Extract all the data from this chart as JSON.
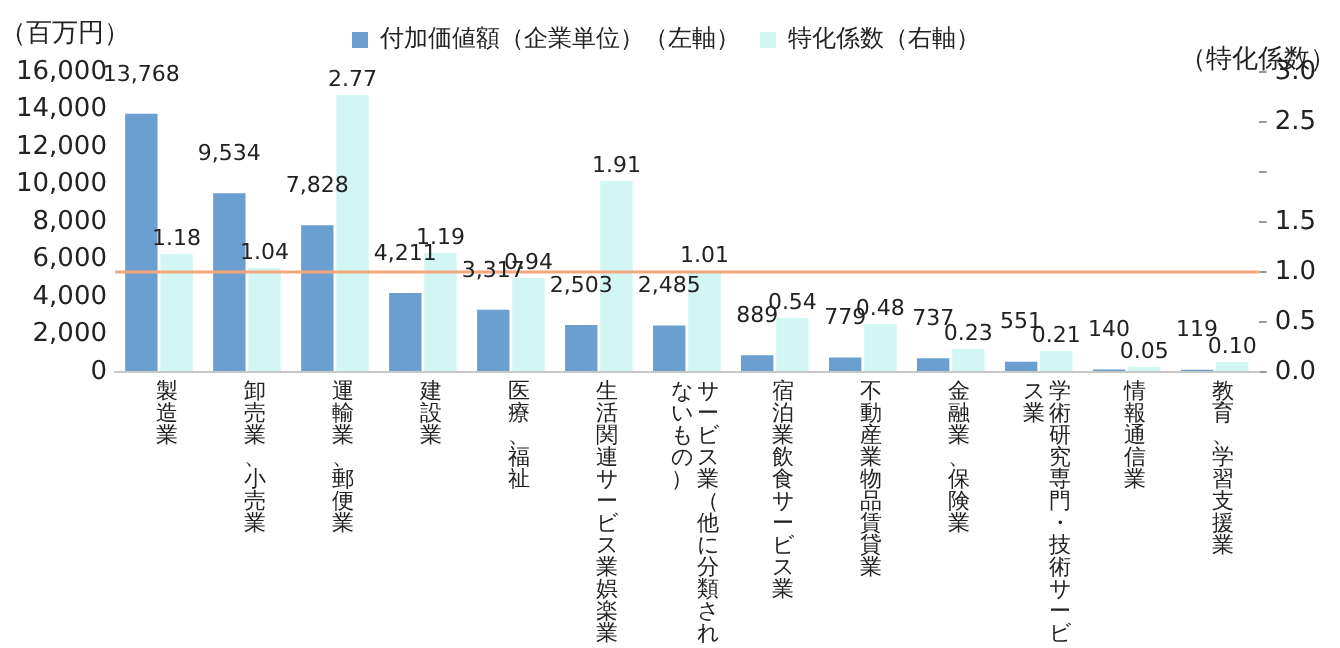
{
  "chart_data": {
    "type": "bar",
    "ylabel": "（百万円）",
    "y2label": "（特化係数）",
    "categories": [
      "製造業",
      "卸売業、小売業",
      "運輸業、郵便業",
      "建設業",
      "医療、福祉",
      "生活関連サービス業娯楽業",
      "サービス業（他に分類されないもの）",
      "宿泊業飲食サービス業",
      "不動産業物品賃貸業",
      "金融業、保険業",
      "学術研究専門・技術サービス業",
      "情報通信業",
      "教育、学習支援業"
    ],
    "series": [
      {
        "name": "付加価値額（企業単位）（左軸）",
        "color": "#6a9fd0",
        "values": [
          13768,
          9534,
          7828,
          4211,
          3317,
          2503,
          2485,
          889,
          779,
          737,
          551,
          140,
          119
        ],
        "value_labels": [
          "13,768",
          "9,534",
          "7,828",
          "4,211",
          "3,317",
          "2,503",
          "2,485",
          "889",
          "779",
          "737",
          "551",
          "140",
          "119"
        ]
      },
      {
        "name": "特化係数（右軸）",
        "color": "#d2f6f4",
        "axis": "y2",
        "values": [
          1.18,
          1.04,
          2.77,
          1.19,
          0.94,
          1.91,
          1.01,
          0.54,
          0.48,
          0.23,
          0.21,
          0.05,
          0.1
        ],
        "value_labels": [
          "1.18",
          "1.04",
          "2.77",
          "1.19",
          "0.94",
          "1.91",
          "1.01",
          "0.54",
          "0.48",
          "0.23",
          "0.21",
          "0.05",
          "0.10"
        ]
      }
    ],
    "ylim": [
      0,
      16000
    ],
    "yticks": [
      {
        "value": 0,
        "label": "0"
      },
      {
        "value": 2000,
        "label": "2,000"
      },
      {
        "value": 4000,
        "label": "4,000"
      },
      {
        "value": 6000,
        "label": "6,000"
      },
      {
        "value": 8000,
        "label": "8,000"
      },
      {
        "value": 10000,
        "label": "10,000"
      },
      {
        "value": 12000,
        "label": "12,000"
      },
      {
        "value": 14000,
        "label": "14,000"
      },
      {
        "value": 16000,
        "label": "16,000"
      }
    ],
    "y2lim": [
      0,
      3
    ],
    "y2ticks": [
      {
        "value": 0,
        "label": "0.0"
      },
      {
        "value": 0.5,
        "label": "0.5"
      },
      {
        "value": 1,
        "label": "1.0"
      },
      {
        "value": 1.5,
        "label": "1.5"
      },
      {
        "value": 2,
        "label": null
      },
      {
        "value": 2.5,
        "label": "2.5"
      },
      {
        "value": 3,
        "label": "3.0"
      }
    ],
    "ref_lines": [
      {
        "axis": "y2",
        "value": 1,
        "color": "#f4a77a"
      }
    ],
    "grid": false,
    "legend": "top"
  }
}
